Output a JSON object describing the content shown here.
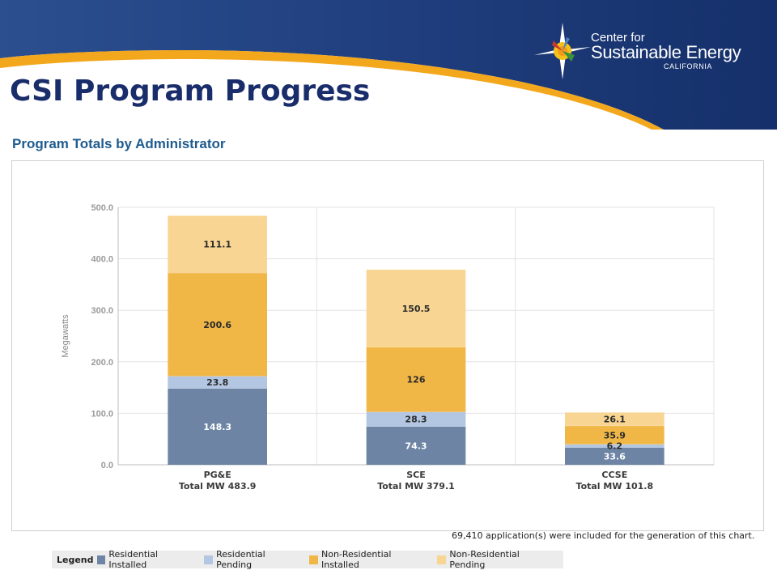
{
  "slide": {
    "title": "CSI Program Progress",
    "logo": {
      "line1": "Center for",
      "line2": "Sustainable Energy",
      "line3": "CALIFORNIA",
      "icon": "sunburst-logo-icon"
    }
  },
  "chart_heading": "Program Totals by Administrator",
  "footnote": "69,410 application(s) were included for the generation of this chart.",
  "legend": {
    "title": "Legend",
    "items": [
      {
        "label": "Residential Installed",
        "color": "#6d84a4"
      },
      {
        "label": "Residential Pending",
        "color": "#b3c6e2"
      },
      {
        "label": "Non-Residential Installed",
        "color": "#f0b747"
      },
      {
        "label": "Non-Residential Pending",
        "color": "#f8d592"
      }
    ]
  },
  "chart_data": {
    "type": "bar",
    "stacked": true,
    "ylabel": "Megawatts",
    "ylim": [
      0,
      500
    ],
    "yticks": [
      "0.0",
      "100.0",
      "200.0",
      "300.0",
      "400.0",
      "500.0"
    ],
    "grid": true,
    "categories": [
      {
        "name": "PG&E",
        "total_label": "Total MW 483.9"
      },
      {
        "name": "SCE",
        "total_label": "Total MW 379.1"
      },
      {
        "name": "CCSE",
        "total_label": "Total MW 101.8"
      }
    ],
    "series": [
      {
        "name": "Residential Installed",
        "color": "#6d84a4",
        "label_color": "#ffffff",
        "values": [
          148.3,
          74.3,
          33.6
        ],
        "labels": [
          "148.3",
          "74.3",
          "33.6"
        ]
      },
      {
        "name": "Residential Pending",
        "color": "#b3c6e2",
        "label_color": "#2b2b2b",
        "values": [
          23.8,
          28.3,
          6.2
        ],
        "labels": [
          "23.8",
          "28.3",
          "6.2"
        ]
      },
      {
        "name": "Non-Residential Installed",
        "color": "#f0b747",
        "label_color": "#2b2b2b",
        "values": [
          200.6,
          126,
          35.9
        ],
        "labels": [
          "200.6",
          "126",
          "35.9"
        ]
      },
      {
        "name": "Non-Residential Pending",
        "color": "#f8d592",
        "label_color": "#2b2b2b",
        "values": [
          111.1,
          150.5,
          26.1
        ],
        "labels": [
          "111.1",
          "150.5",
          "26.1"
        ]
      }
    ]
  }
}
